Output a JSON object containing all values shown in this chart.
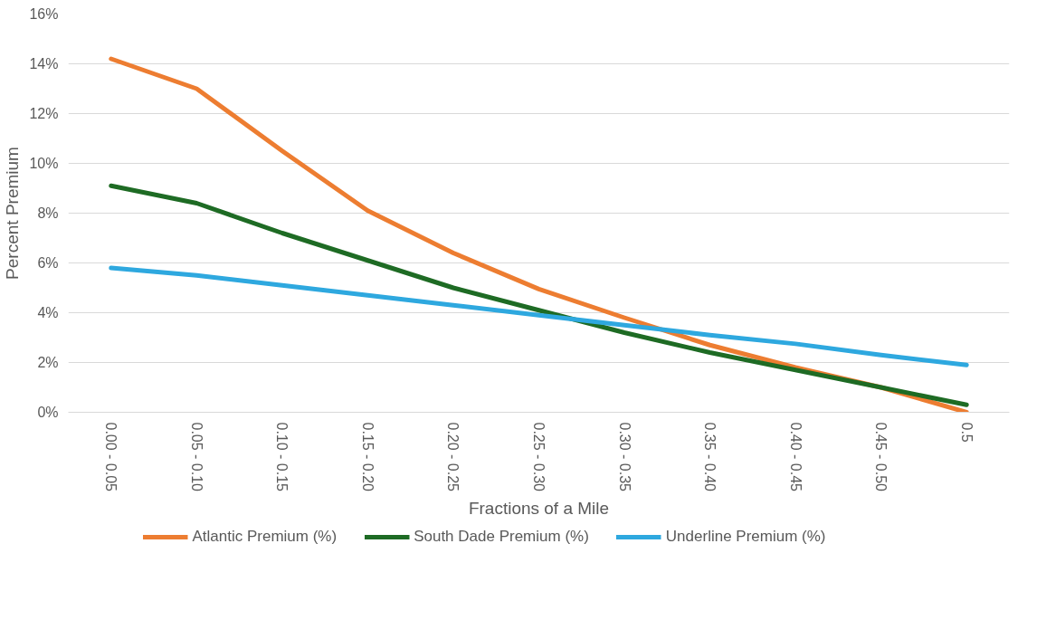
{
  "chart_data": {
    "type": "line",
    "xlabel": "Fractions of a Mile",
    "ylabel": "Percent Premium",
    "categories": [
      "0.00 - 0.05",
      "0.05 - 0.10",
      "0.10 - 0.15",
      "0.15 - 0.20",
      "0.20 - 0.25",
      "0.25 - 0.30",
      "0.30 - 0.35",
      "0.35 - 0.40",
      "0.40 - 0.45",
      "0.45 - 0.50",
      "0.5"
    ],
    "series": [
      {
        "name": "Atlantic Premium (%)",
        "color": "#ed7d31",
        "values": [
          14.2,
          13.0,
          10.5,
          8.1,
          6.4,
          4.95,
          3.8,
          2.7,
          1.8,
          1.0,
          0
        ]
      },
      {
        "name": "South Dade Premium (%)",
        "color": "#1e6b24",
        "values": [
          9.1,
          8.4,
          7.2,
          6.1,
          5.0,
          4.1,
          3.2,
          2.4,
          1.7,
          1.0,
          0.3
        ]
      },
      {
        "name": "Underline Premium (%)",
        "color": "#2ea8df",
        "values": [
          5.8,
          5.5,
          5.1,
          4.7,
          4.3,
          3.9,
          3.5,
          3.1,
          2.75,
          2.3,
          1.9
        ]
      }
    ],
    "ylim": [
      0,
      16
    ],
    "yticks": [
      {
        "value": 0,
        "label": "0%"
      },
      {
        "value": 2,
        "label": "2%"
      },
      {
        "value": 4,
        "label": "4%"
      },
      {
        "value": 6,
        "label": "6%"
      },
      {
        "value": 8,
        "label": "8%"
      },
      {
        "value": 10,
        "label": "10%"
      },
      {
        "value": 12,
        "label": "12%"
      },
      {
        "value": 14,
        "label": "14%"
      },
      {
        "value": 16,
        "label": "16%"
      }
    ],
    "grid": "y",
    "legend": "bottom",
    "marker": "none",
    "line_style": "solid"
  }
}
